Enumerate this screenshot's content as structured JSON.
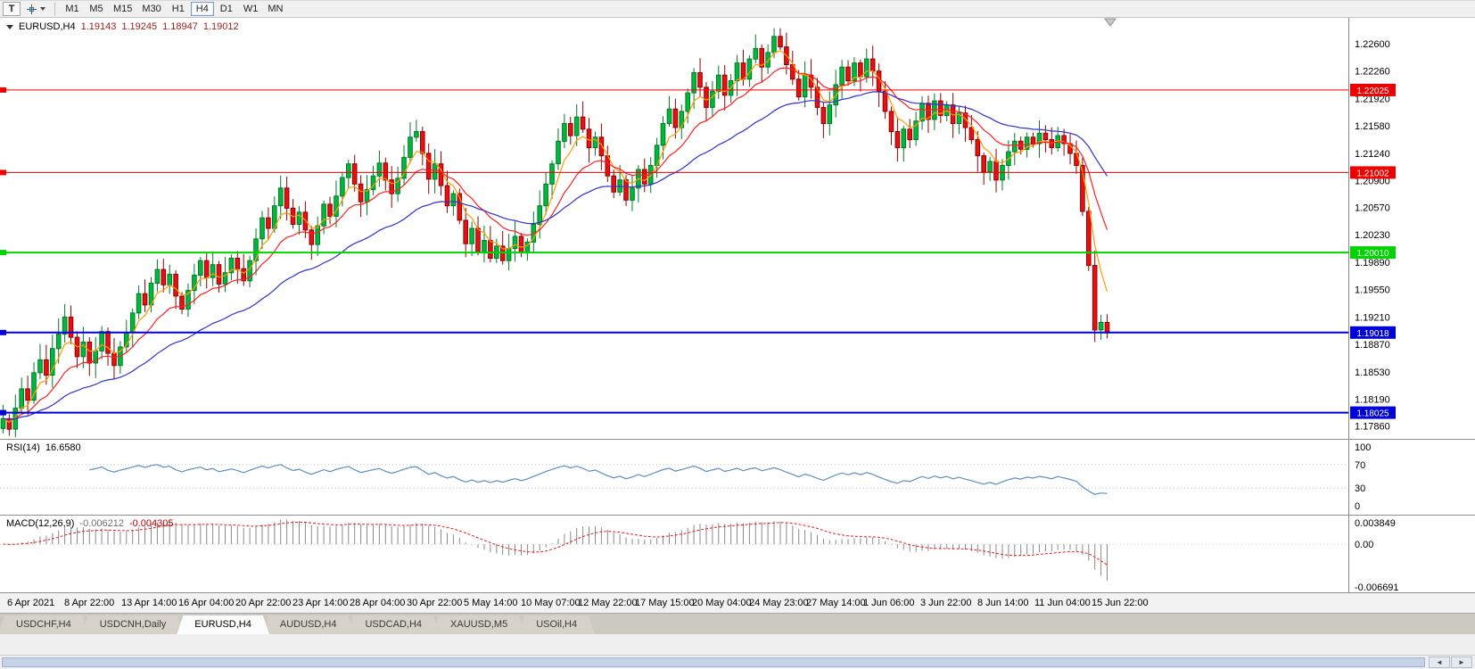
{
  "toolbar": {
    "tool_button_label": "T",
    "timeframes": [
      "M1",
      "M5",
      "M15",
      "M30",
      "H1",
      "H4",
      "D1",
      "W1",
      "MN"
    ],
    "active_timeframe": "H4"
  },
  "chart_header": {
    "symbol": "EURUSD,H4",
    "open": "1.19143",
    "high": "1.19245",
    "low": "1.18947",
    "close": "1.19012"
  },
  "price_axis": {
    "ticks": [
      "1.22600",
      "1.22260",
      "1.21920",
      "1.21580",
      "1.21240",
      "1.20900",
      "1.20570",
      "1.20230",
      "1.19890",
      "1.19550",
      "1.19210",
      "1.18870",
      "1.18530",
      "1.18190",
      "1.17860"
    ]
  },
  "hlines": [
    {
      "label": "1.22025",
      "value": 1.22025,
      "color": "#ee0000",
      "width": 1
    },
    {
      "label": "1.21002",
      "value": 1.21002,
      "color": "#ee0000",
      "width": 1
    },
    {
      "label": "1.20010",
      "value": 1.2001,
      "color": "#00d400",
      "width": 2
    },
    {
      "label": "1.19018",
      "value": 1.19018,
      "color": "#0000d8",
      "width": 2
    },
    {
      "label": "1.18025",
      "value": 1.18025,
      "color": "#0000d8",
      "width": 2
    }
  ],
  "time_axis": [
    "6 Apr 2021",
    "8 Apr 22:00",
    "13 Apr 14:00",
    "16 Apr 04:00",
    "20 Apr 22:00",
    "23 Apr 14:00",
    "28 Apr 04:00",
    "30 Apr 22:00",
    "5 May 14:00",
    "10 May 07:00",
    "12 May 22:00",
    "17 May 15:00",
    "20 May 04:00",
    "24 May 23:00",
    "27 May 14:00",
    "1 Jun 06:00",
    "3 Jun 22:00",
    "8 Jun 14:00",
    "11 Jun 04:00",
    "15 Jun 22:00"
  ],
  "rsi_panel": {
    "title": "RSI(14)",
    "value": "16.6580",
    "axis_ticks": [
      {
        "label": "100",
        "value": 100
      },
      {
        "label": "70",
        "value": 70
      },
      {
        "label": "30",
        "value": 30
      },
      {
        "label": "0",
        "value": 0
      }
    ],
    "levels": [
      70,
      30
    ],
    "line_color": "#5b8ec4"
  },
  "macd_panel": {
    "title": "MACD(12,26,9)",
    "value1": "-0.006212",
    "value2": "-0.004305",
    "axis_ticks": [
      {
        "label": "0.003849",
        "value": 0.003849
      },
      {
        "label": "0.00",
        "value": 0
      },
      {
        "label": "-0.006691",
        "value": -0.006691
      }
    ],
    "scale_max": 0.003849,
    "scale_min": -0.006691,
    "histogram_color": "#8a8a8a",
    "signal_color": "#e02020"
  },
  "tabs": {
    "items": [
      {
        "label": "USDCHF,H4",
        "active": false
      },
      {
        "label": "USDCNH,Daily",
        "active": false
      },
      {
        "label": "EURUSD,H4",
        "active": true
      },
      {
        "label": "AUDUSD,H4",
        "active": false
      },
      {
        "label": "USDCAD,H4",
        "active": false
      },
      {
        "label": "XAUUSD,M5",
        "active": false
      },
      {
        "label": "USOil,H4",
        "active": false
      }
    ]
  },
  "scrollbar": {
    "left_arrow": "◄",
    "right_arrow": "►"
  },
  "chart_data": {
    "type": "candlestick",
    "title": "EURUSD,H4",
    "symbol": "EURUSD",
    "timeframe": "H4",
    "current_quote": {
      "open": 1.19143,
      "high": 1.19245,
      "low": 1.18947,
      "close": 1.19012
    },
    "price_range": {
      "top": 1.2292,
      "bottom": 1.177
    },
    "horizontal_levels": [
      1.22025,
      1.21002,
      1.2001,
      1.19018,
      1.18025
    ],
    "x_start_label": "6 Apr 2021",
    "x_end_label": "15 Jun 22:00",
    "up_color": "#00b93c",
    "up_border": "#007a26",
    "down_color": "#e81010",
    "down_border": "#8f0000",
    "ma": [
      {
        "period": 5,
        "color": "#ff9c00"
      },
      {
        "period": 13,
        "color": "#ff2020"
      },
      {
        "period": 34,
        "color": "#3030d0"
      }
    ],
    "rsi_period": 14,
    "rsi_current": 16.658,
    "macd_params": {
      "fast": 12,
      "slow": 26,
      "signal": 9
    },
    "macd_current": {
      "macd": -0.006212,
      "signal": -0.004305
    },
    "closes": [
      1.1795,
      1.1782,
      1.1808,
      1.1832,
      1.1818,
      1.1852,
      1.1868,
      1.1849,
      1.1882,
      1.19,
      1.1921,
      1.1896,
      1.1872,
      1.189,
      1.1864,
      1.1879,
      1.1903,
      1.1876,
      1.1861,
      1.1884,
      1.1902,
      1.1926,
      1.195,
      1.1936,
      1.1963,
      1.198,
      1.1961,
      1.1974,
      1.1947,
      1.1931,
      1.1954,
      1.1973,
      1.1991,
      1.197,
      1.1986,
      1.1962,
      1.1976,
      1.1994,
      1.1981,
      1.1966,
      1.1991,
      1.2018,
      1.2044,
      1.2031,
      1.2059,
      1.2081,
      1.2056,
      1.2036,
      1.2051,
      1.2029,
      1.2011,
      1.2034,
      1.2061,
      1.2046,
      1.2071,
      1.2094,
      1.2111,
      1.2086,
      1.2064,
      1.2079,
      1.2096,
      1.2112,
      1.2091,
      1.2074,
      1.2093,
      1.2119,
      1.2144,
      1.2151,
      1.2124,
      1.2092,
      1.2111,
      1.2084,
      1.2059,
      1.2074,
      1.2041,
      1.2012,
      1.2031,
      1.2002,
      1.2016,
      1.1994,
      1.2009,
      1.1991,
      1.2006,
      1.2021,
      1.2001,
      1.2014,
      1.2036,
      1.2059,
      1.2086,
      1.2111,
      1.2139,
      1.2161,
      1.2146,
      1.2169,
      1.2154,
      1.2131,
      1.2144,
      1.2121,
      1.2096,
      1.2076,
      1.2091,
      1.2066,
      1.2081,
      1.2104,
      1.2086,
      1.2109,
      1.2134,
      1.2161,
      1.2179,
      1.2156,
      1.2176,
      1.2199,
      1.2224,
      1.2206,
      1.2181,
      1.2201,
      1.2221,
      1.2196,
      1.2214,
      1.2236,
      1.2216,
      1.2241,
      1.2254,
      1.2231,
      1.2249,
      1.2269,
      1.2256,
      1.2234,
      1.2216,
      1.2194,
      1.2221,
      1.2206,
      1.2181,
      1.2161,
      1.2184,
      1.2209,
      1.2231,
      1.2214,
      1.2236,
      1.2219,
      1.2241,
      1.2226,
      1.2201,
      1.2176,
      1.2151,
      1.2131,
      1.2154,
      1.2141,
      1.2164,
      1.2186,
      1.2166,
      1.2189,
      1.2171,
      1.2184,
      1.2161,
      1.2174,
      1.2156,
      1.2141,
      1.2121,
      1.2101,
      1.2114,
      1.2091,
      1.2109,
      1.2126,
      1.2139,
      1.2129,
      1.2144,
      1.2136,
      1.2149,
      1.2141,
      1.2131,
      1.2146,
      1.2136,
      1.2124,
      1.2109,
      1.2052,
      1.1985,
      1.1905,
      1.19143,
      1.19012
    ],
    "last_candle": {
      "open": 1.19143,
      "high": 1.19245,
      "low": 1.18947,
      "close": 1.19012
    }
  }
}
